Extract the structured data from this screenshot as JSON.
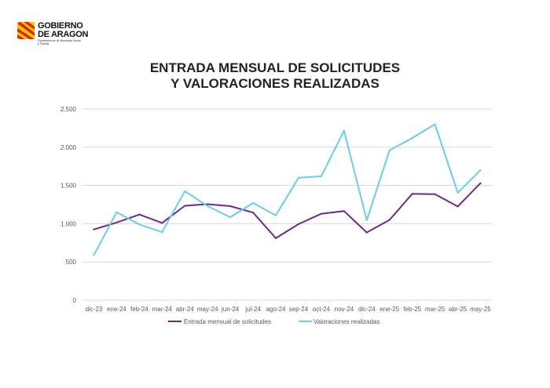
{
  "logo": {
    "line1": "GOBIERNO",
    "line2": "DE ARAGON",
    "line3": "Departamento de Bienestar Social",
    "line4": "y Familia",
    "icon": "aragon-flag-icon"
  },
  "colors": {
    "series1": "#6a2a8c",
    "series2": "#6ccbea",
    "grid": "#d9d9d9",
    "axis_text": "#595959",
    "logo_red": "#d7261e",
    "logo_yellow": "#f6c700"
  },
  "chart_data": {
    "type": "line",
    "title_line1": "ENTRADA MENSUAL DE SOLICITUDES",
    "title_line2": "Y VALORACIONES REALIZADAS",
    "categories": [
      "dic-23",
      "ene-24",
      "feb-24",
      "mar-24",
      "abr-24",
      "may-24",
      "jun-24",
      "jul-24",
      "ago-24",
      "sep-24",
      "oct-24",
      "nov-24",
      "dic-24",
      "ene-25",
      "feb-25",
      "mar-25",
      "abr-25",
      "may-25"
    ],
    "ylim": [
      0,
      2500
    ],
    "yticks": [
      0,
      500,
      1000,
      1500,
      2000,
      2500
    ],
    "ytick_labels": [
      "0",
      "500",
      "1.000",
      "1.500",
      "2.000",
      "2.500"
    ],
    "grid": true,
    "legend_position": "bottom",
    "series": [
      {
        "name": "Entrada mensual de solicitudes",
        "color": "#6a2a8c",
        "values": [
          925,
          1015,
          1120,
          1010,
          1235,
          1255,
          1230,
          1145,
          810,
          995,
          1130,
          1165,
          885,
          1050,
          1390,
          1385,
          1225,
          1530
        ]
      },
      {
        "name": "Valoraciones realizadas",
        "color": "#6ccbea",
        "values": [
          590,
          1150,
          990,
          890,
          1425,
          1230,
          1085,
          1270,
          1110,
          1600,
          1620,
          2215,
          1045,
          1960,
          2120,
          2300,
          1405,
          1700
        ]
      }
    ]
  }
}
